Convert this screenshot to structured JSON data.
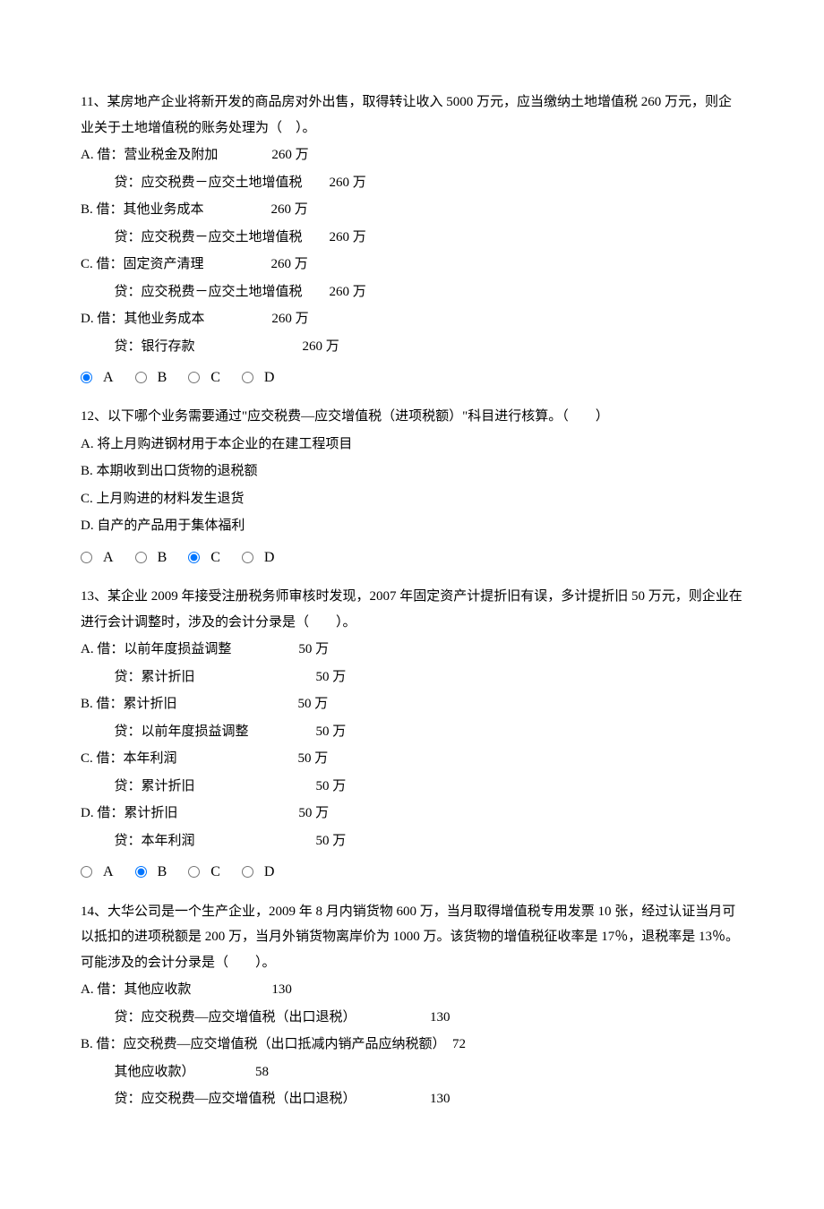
{
  "q11": {
    "stem": "11、某房地产企业将新开发的商品房对外出售，取得转让收入 5000 万元，应当缴纳土地增值税 260 万元，则企业关于土地增值税的账务处理为（　）。",
    "A1": "A.  借：营业税金及附加　　　　260 万",
    "A2": "贷：应交税费－应交土地增值税　　260 万",
    "B1": "B.  借：其他业务成本　　　　　260 万",
    "B2": "贷：应交税费－应交土地增值税　　260 万",
    "C1": "C.  借：固定资产清理　　　　　260 万",
    "C2": "贷：应交税费－应交土地增值税　　260 万",
    "D1": "D.  借：其他业务成本　　　　　260 万",
    "D2": "贷：银行存款　　　　　　　　260 万",
    "selected": "A"
  },
  "q12": {
    "stem": "12、以下哪个业务需要通过\"应交税费—应交增值税（进项税额）\"科目进行核算。（　　）",
    "A": "A.  将上月购进钢材用于本企业的在建工程项目",
    "B": "B.  本期收到出口货物的退税额",
    "C": "C.  上月购进的材料发生退货",
    "D": "D.  自产的产品用于集体福利",
    "selected": "C"
  },
  "q13": {
    "stem": "13、某企业 2009 年接受注册税务师审核时发现，2007 年固定资产计提折旧有误，多计提折旧 50 万元，则企业在进行会计调整时，涉及的会计分录是（　　）。",
    "A1": "A.  借：以前年度损益调整　　　　　50 万",
    "A2": "贷：累计折旧　　　　　　　　　50 万",
    "B1": "B.  借：累计折旧　　　　　　　　　50 万",
    "B2": "贷：以前年度损益调整　　　　　50 万",
    "C1": "C.  借：本年利润　　　　　　　　　50 万",
    "C2": "贷：累计折旧　　　　　　　　　50 万",
    "D1": "D.  借：累计折旧　　　　　　　　　50 万",
    "D2": "贷：本年利润　　　　　　　　　50 万",
    "selected": "B"
  },
  "q14": {
    "stem": "14、大华公司是一个生产企业，2009 年 8 月内销货物 600 万，当月取得增值税专用发票 10 张，经过认证当月可以抵扣的进项税额是 200 万，当月外销货物离岸价为 1000 万。该货物的增值税征收率是 17％，退税率是 13％。可能涉及的会计分录是（　　）。",
    "A1": "A.  借：其他应收款　　　　　　130",
    "A2": "贷：应交税费—应交增值税（出口退税）　　　　　　130",
    "B1": "B.  借：应交税费—应交增值税（出口抵减内销产品应纳税额）　72",
    "B2": "其他应收款）　　　　　58",
    "B3": "贷：应交税费—应交增值税（出口退税）　　　　　　130"
  },
  "labels": {
    "A": "A",
    "B": "B",
    "C": "C",
    "D": "D"
  }
}
